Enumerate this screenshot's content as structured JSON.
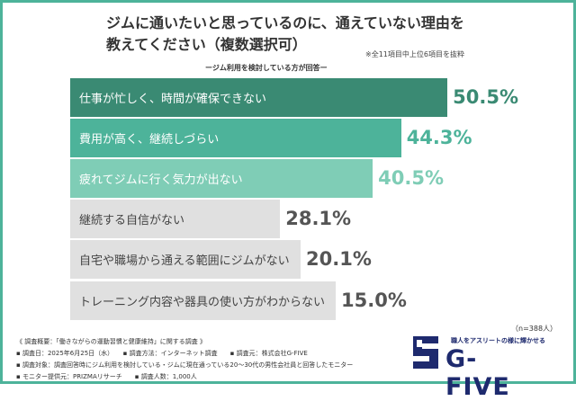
{
  "chart_data": {
    "type": "bar",
    "orientation": "horizontal",
    "title_lines": [
      "ジムに通いたいと思っているのに、通えていない理由を",
      "教えてください（複数選択可）"
    ],
    "note": "※全11項目中上位6項目を抜粋",
    "subtitle": "ージム利用を検討している方が回答ー",
    "categories": [
      "仕事が忙しく、時間が確保できない",
      "費用が高く、継続しづらい",
      "疲れてジムに行く気力が出ない",
      "継続する自信がない",
      "自宅や職場から通える範囲にジムがない",
      "トレーニング内容や器具の使い方がわからない"
    ],
    "values": [
      50.5,
      44.3,
      40.5,
      28.1,
      20.1,
      15.0
    ],
    "labels": [
      "50.5%",
      "44.3%",
      "40.5%",
      "28.1%",
      "20.1%",
      "15.0%"
    ],
    "colors": [
      "#3a8a73",
      "#4db39a",
      "#7fcdb6",
      "#e0e0e0",
      "#e0e0e0",
      "#e0e0e0"
    ],
    "value_colors": [
      "#3a8a73",
      "#4db39a",
      "#7fcdb6",
      "#555555",
      "#555555",
      "#555555"
    ],
    "sample": "（n=388人）"
  },
  "footer": {
    "lines": [
      "《 調査概要：「働きながらの運動習慣と健康維持」に関する調査 》",
      "▪ 調査日：2025年6月25日（水）　　▪ 調査方法：インターネット調査　　▪ 調査元：株式会社G-FIVE",
      "▪ 調査対象：調査回答時にジム利用を検討している・ジムに現在通っている20～30代の男性会社員と回答したモニター",
      "▪ モニター提供元：PRIZMAリサーチ　　▪ 調査人数：1,000人"
    ]
  },
  "logo": {
    "tagline": "職人をアスリートの様に輝かせる",
    "name": "G-FIVE"
  }
}
